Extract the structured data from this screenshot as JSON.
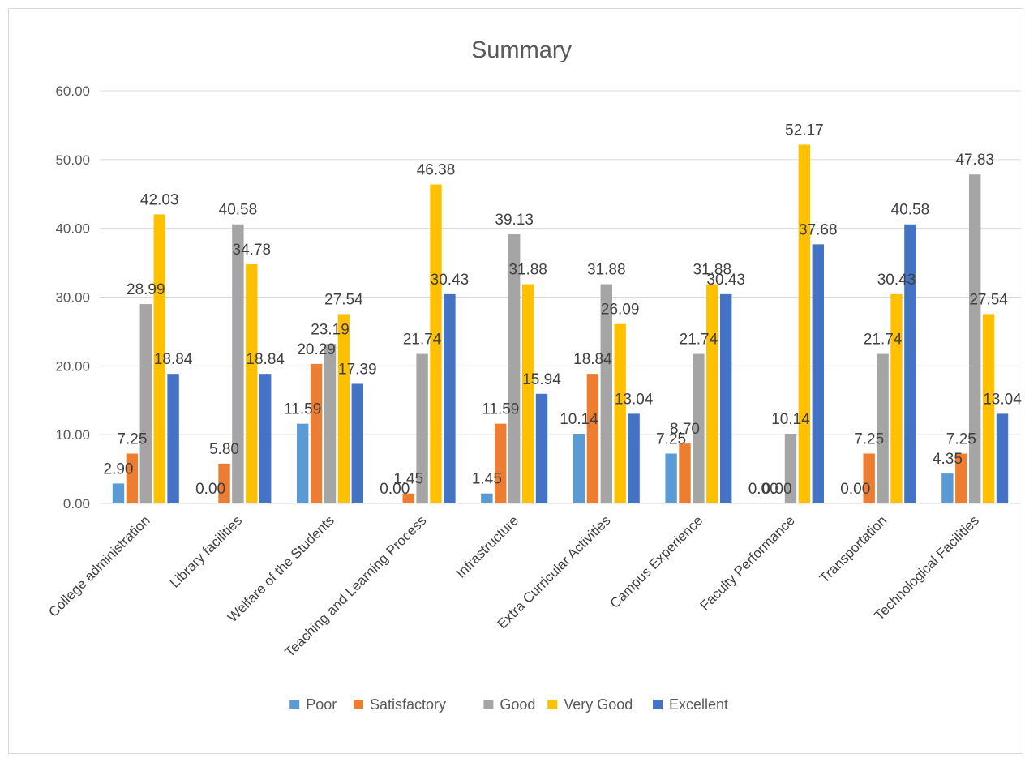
{
  "chart_data": {
    "type": "bar",
    "title": "Summary",
    "xlabel": "",
    "ylabel": "",
    "ylim": [
      0,
      60
    ],
    "ytick_step": 10,
    "ytick_labels": [
      "0.00",
      "10.00",
      "20.00",
      "30.00",
      "40.00",
      "50.00",
      "60.00"
    ],
    "grid": true,
    "legend_position": "bottom",
    "categories": [
      "College administration",
      "Library facilities",
      "Welfare of the Students",
      "Teaching and Learning Process",
      "Infrastructure",
      "Extra Curricular  Activities",
      "Campus Experience",
      "Faculty Performance",
      "Transportation",
      "Technological Facilities"
    ],
    "series": [
      {
        "name": "Poor",
        "color": "#5B9BD5",
        "values": [
          2.9,
          0.0,
          11.59,
          0.0,
          1.45,
          10.14,
          7.25,
          0.0,
          0.0,
          4.35
        ]
      },
      {
        "name": "Satisfactory",
        "color": "#ED7D31",
        "values": [
          7.25,
          5.8,
          20.29,
          1.45,
          11.59,
          18.84,
          8.7,
          0.0,
          7.25,
          7.25
        ]
      },
      {
        "name": "Good",
        "color": "#A5A5A5",
        "values": [
          28.99,
          40.58,
          23.19,
          21.74,
          39.13,
          31.88,
          21.74,
          10.14,
          21.74,
          47.83
        ]
      },
      {
        "name": "Very Good",
        "color": "#FFC000",
        "values": [
          42.03,
          34.78,
          27.54,
          46.38,
          31.88,
          26.09,
          31.88,
          52.17,
          30.43,
          27.54
        ]
      },
      {
        "name": "Excellent",
        "color": "#4472C4",
        "values": [
          18.84,
          18.84,
          17.39,
          30.43,
          15.94,
          13.04,
          30.43,
          37.68,
          40.58,
          13.04
        ]
      }
    ]
  }
}
